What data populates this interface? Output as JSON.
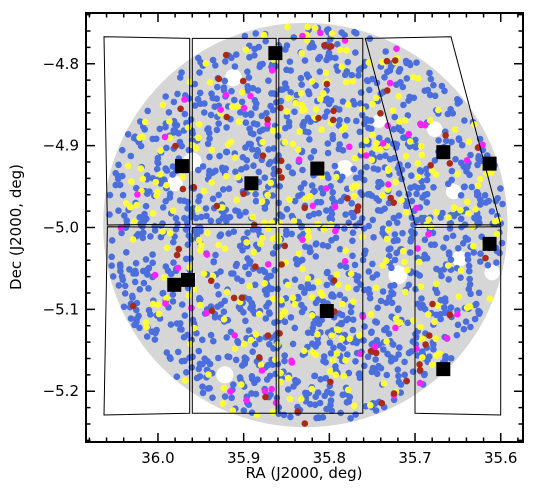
{
  "chart_data": {
    "type": "scatter",
    "xlabel": "RA (J2000, deg)",
    "ylabel": "Dec (J2000, deg)",
    "xlim": [
      36.084,
      35.574
    ],
    "ylim": [
      -5.262,
      -4.738
    ],
    "x_ticks": [
      36.0,
      35.9,
      35.8,
      35.7,
      35.6
    ],
    "x_tick_labels": [
      "36.0",
      "35.9",
      "35.8",
      "35.7",
      "35.6"
    ],
    "y_ticks": [
      -4.8,
      -4.9,
      -5.0,
      -5.1,
      -5.2
    ],
    "y_tick_labels": [
      "−4.8",
      "−4.9",
      "−5.0",
      "−5.1",
      "−5.2"
    ],
    "x_minor_step": 0.02,
    "y_minor_step": 0.02,
    "grid": false,
    "legend": "none",
    "colors": {
      "blue": "#4a6fdc",
      "yellow": "#ffff33",
      "magenta": "#ff22ff",
      "darkred": "#aa2a1a",
      "footprint": "#d6d6d6",
      "mask": "#000000"
    },
    "footprint": {
      "center": [
        35.828,
        -4.997
      ],
      "radius_deg": 0.236
    },
    "detector_chips": [
      {
        "x": [
          36.063,
          35.963,
          35.963,
          36.059
        ],
        "y": [
          -4.767,
          -4.769,
          -4.996,
          -4.997
        ]
      },
      {
        "x": [
          35.96,
          35.862,
          35.862,
          35.96
        ],
        "y": [
          -4.769,
          -4.769,
          -4.996,
          -4.996
        ]
      },
      {
        "x": [
          35.859,
          35.761,
          35.761,
          35.859
        ],
        "y": [
          -4.769,
          -4.769,
          -4.996,
          -4.996
        ]
      },
      {
        "x": [
          35.758,
          35.658,
          35.6,
          35.7
        ],
        "y": [
          -4.769,
          -4.767,
          -4.997,
          -4.996
        ]
      },
      {
        "x": [
          36.059,
          35.963,
          35.963,
          36.063
        ],
        "y": [
          -4.999,
          -5.0,
          -5.227,
          -5.229
        ]
      },
      {
        "x": [
          35.96,
          35.862,
          35.862,
          35.96
        ],
        "y": [
          -5.0,
          -5.0,
          -5.227,
          -5.227
        ]
      },
      {
        "x": [
          35.859,
          35.761,
          35.761,
          35.859
        ],
        "y": [
          -5.0,
          -5.0,
          -5.227,
          -5.227
        ]
      },
      {
        "x": [
          35.7,
          35.6,
          35.6,
          35.7
        ],
        "y": [
          -5.0,
          -4.999,
          -5.229,
          -5.227
        ]
      }
    ],
    "masked_regions": [
      {
        "x": 35.863,
        "y": -4.787
      },
      {
        "x": 35.972,
        "y": -4.925
      },
      {
        "x": 35.891,
        "y": -4.946
      },
      {
        "x": 35.814,
        "y": -4.928
      },
      {
        "x": 35.667,
        "y": -4.908
      },
      {
        "x": 35.613,
        "y": -4.922
      },
      {
        "x": 35.613,
        "y": -5.02
      },
      {
        "x": 35.965,
        "y": -5.064
      },
      {
        "x": 35.981,
        "y": -5.07
      },
      {
        "x": 35.803,
        "y": -5.102
      },
      {
        "x": 35.667,
        "y": -5.173
      }
    ],
    "holes": [
      {
        "x": 35.912,
        "y": -4.817,
        "r": 0.01
      },
      {
        "x": 35.96,
        "y": -4.92,
        "r": 0.011
      },
      {
        "x": 35.98,
        "y": -4.946,
        "r": 0.009
      },
      {
        "x": 35.782,
        "y": -4.928,
        "r": 0.01
      },
      {
        "x": 35.742,
        "y": -4.87,
        "r": 0.008
      },
      {
        "x": 35.677,
        "y": -4.88,
        "r": 0.009
      },
      {
        "x": 35.655,
        "y": -4.956,
        "r": 0.009
      },
      {
        "x": 35.648,
        "y": -5.038,
        "r": 0.009
      },
      {
        "x": 35.72,
        "y": -5.058,
        "r": 0.011
      },
      {
        "x": 35.61,
        "y": -5.055,
        "r": 0.009
      },
      {
        "x": 35.922,
        "y": -5.18,
        "r": 0.01
      },
      {
        "x": 35.963,
        "y": -5.06,
        "r": 0.007
      }
    ],
    "series": [
      {
        "color": "blue",
        "count": 1450
      },
      {
        "color": "yellow",
        "count": 330
      },
      {
        "color": "magenta",
        "count": 60
      },
      {
        "color": "darkred",
        "count": 70
      }
    ]
  }
}
